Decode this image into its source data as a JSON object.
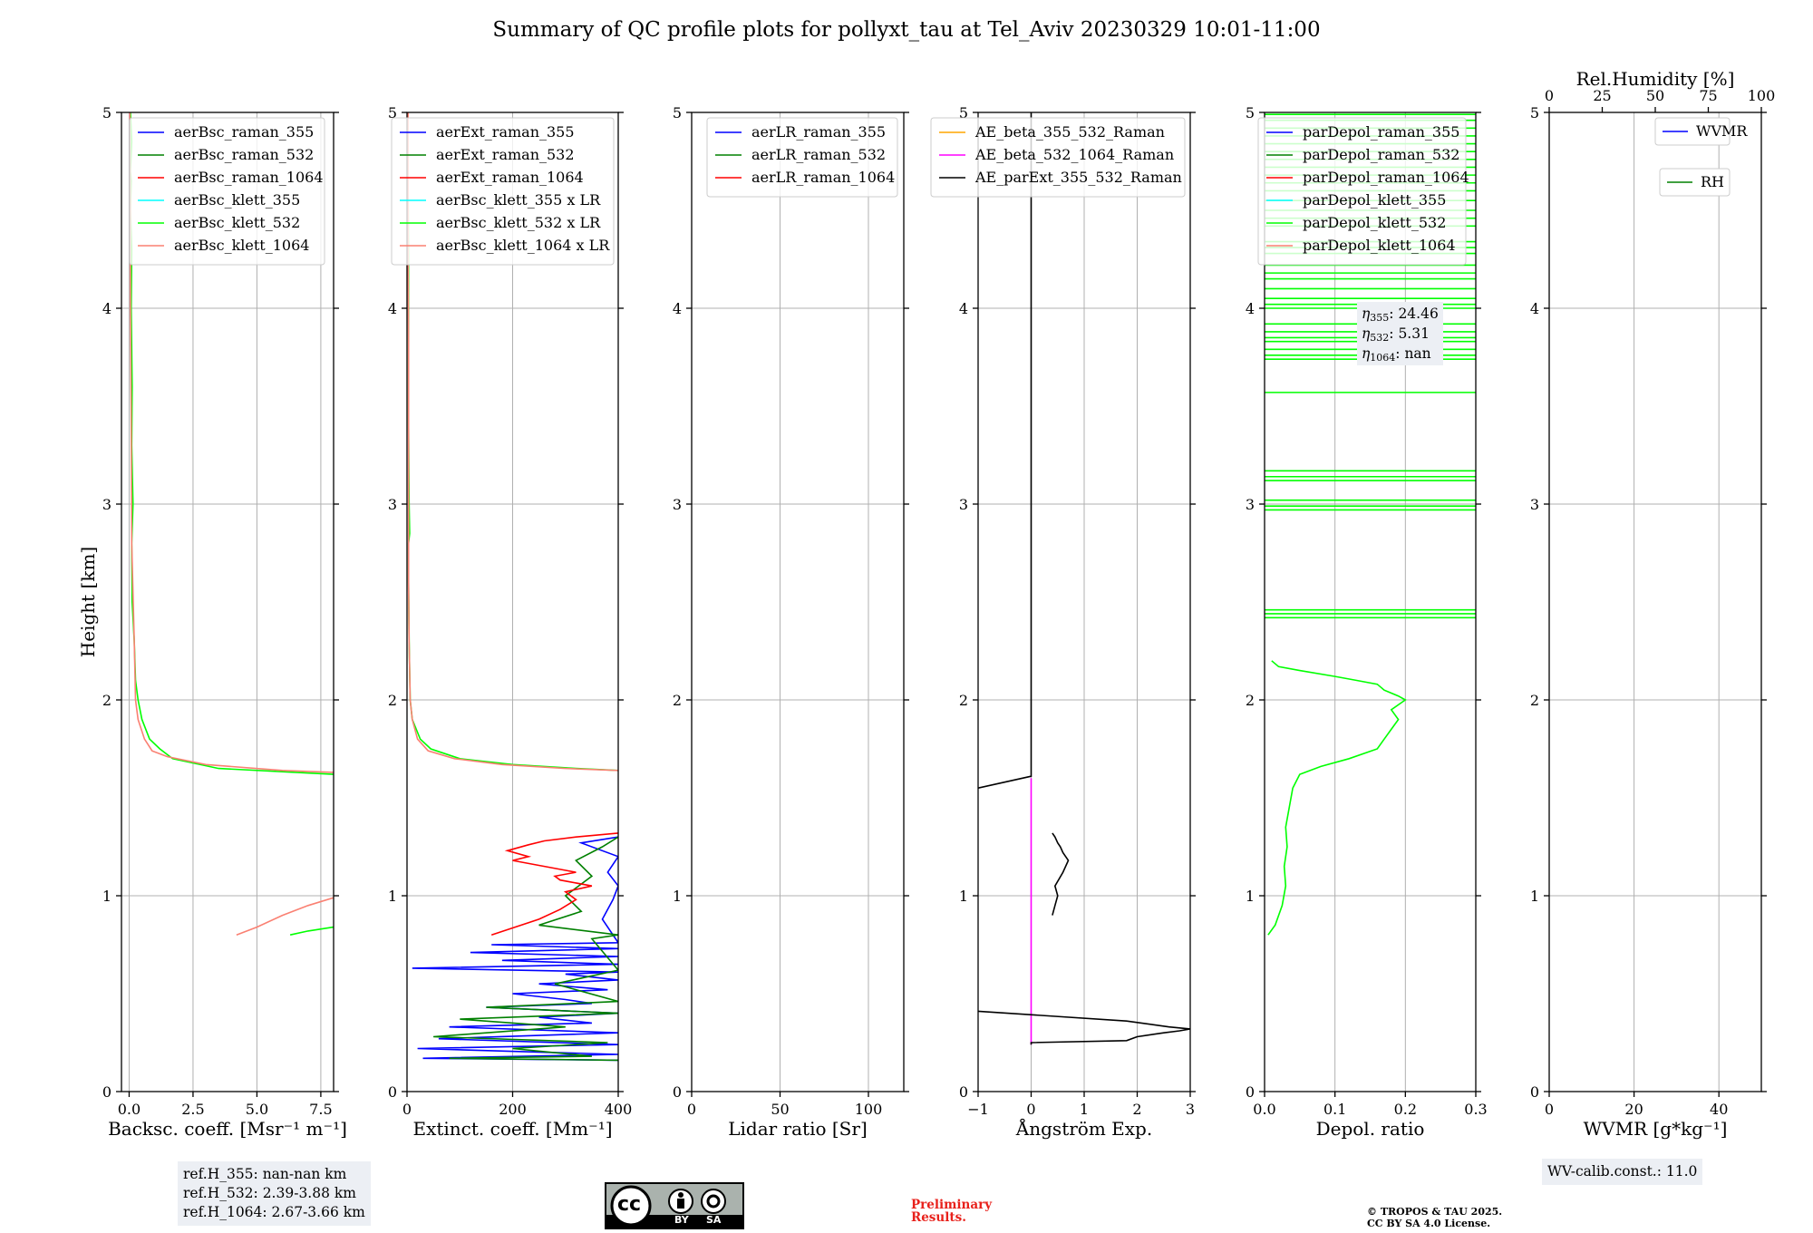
{
  "figure": {
    "title": "Summary of QC profile plots for pollyxt_tau at Tel_Aviv 20230329 10:01-11:00",
    "ref_h": [
      "ref.H_355: nan-nan km",
      "ref.H_532: 2.39-3.88 km",
      "ref.H_1064: 2.67-3.66 km"
    ],
    "wv_calib": "WV-calib.const.: 11.0",
    "license_badge": {
      "cc": "cc",
      "by": "BY",
      "sa": "SA"
    },
    "preliminary": [
      "Preliminary",
      "Results."
    ],
    "copyright": [
      "© TROPOS & TAU 2025.",
      "CC BY SA 4.0 License."
    ]
  },
  "colors": {
    "blue": "#0000ff",
    "green": "#008000",
    "red": "#ff0000",
    "cyan": "#00ffff",
    "lime": "#00ff00",
    "salmon": "#fa8072",
    "orange": "#ffa500",
    "magenta": "#ff00ff",
    "black": "#000000",
    "grid": "#b0b0b0",
    "legend_box": "#eceff4"
  },
  "chart_data": [
    {
      "type": "line",
      "id": "backscatter",
      "ylabel": "Height [km]",
      "xlabel": "Backsc. coeff. [Msr⁻¹ m⁻¹]",
      "xlim": [
        -0.3,
        8.0
      ],
      "ylim": [
        0,
        5
      ],
      "xticks": [
        0,
        2.5,
        5.0,
        7.5
      ],
      "xtick_labels": [
        "0.0",
        "2.5",
        "5.0",
        "7.5"
      ],
      "yticks": [
        0,
        1,
        2,
        3,
        4,
        5
      ],
      "ytick_labels": [
        "0",
        "1",
        "2",
        "3",
        "4",
        "5"
      ],
      "legend_placement": "top-right",
      "series": [
        {
          "name": "aerBsc_raman_355",
          "color": "blue",
          "x": [],
          "y": []
        },
        {
          "name": "aerBsc_raman_532",
          "color": "green",
          "x": [],
          "y": []
        },
        {
          "name": "aerBsc_raman_1064",
          "color": "red",
          "x": [],
          "y": []
        },
        {
          "name": "aerBsc_klett_355",
          "color": "cyan",
          "x": [],
          "y": []
        },
        {
          "name": "aerBsc_klett_532",
          "color": "lime",
          "x": [
            6.3,
            7.0,
            8.0,
            null,
            8.0,
            6.5,
            3.5,
            1.7,
            1.2,
            0.8,
            0.5,
            0.35,
            0.25,
            0.2,
            0.12,
            0.1,
            0.15,
            0.1,
            0.12,
            0.08,
            0.1,
            0.05,
            0.08,
            0.05,
            0.1,
            0.05
          ],
          "y": [
            0.8,
            0.82,
            0.84,
            null,
            1.62,
            1.63,
            1.65,
            1.7,
            1.75,
            1.8,
            1.9,
            2.0,
            2.1,
            2.3,
            2.5,
            2.8,
            3.0,
            3.3,
            3.6,
            4.0,
            4.3,
            4.5,
            4.65,
            4.7,
            4.85,
            5.0
          ]
        },
        {
          "name": "aerBsc_klett_1064",
          "color": "salmon",
          "x": [
            4.2,
            5.0,
            6.0,
            7.0,
            8.0,
            null,
            8.0,
            6.0,
            3.0,
            1.5,
            0.9,
            0.6,
            0.35,
            0.25,
            0.2,
            0.1,
            0.08,
            0.05,
            0.05,
            0.03
          ],
          "y": [
            0.8,
            0.84,
            0.9,
            0.95,
            0.99,
            null,
            1.63,
            1.64,
            1.67,
            1.71,
            1.74,
            1.8,
            1.9,
            2.0,
            2.3,
            2.8,
            3.5,
            4.0,
            4.5,
            5.0
          ]
        }
      ]
    },
    {
      "type": "line",
      "id": "extinction",
      "xlabel": "Extinct. coeff. [Mm⁻¹]",
      "xlim": [
        0,
        400
      ],
      "ylim": [
        0,
        5
      ],
      "xticks": [
        0,
        200,
        400
      ],
      "xtick_labels": [
        "0",
        "200",
        "400"
      ],
      "yticks": [
        0,
        1,
        2,
        3,
        4,
        5
      ],
      "ytick_labels": [
        "0",
        "1",
        "2",
        "3",
        "4",
        "5"
      ],
      "legend_placement": "top-right",
      "series": [
        {
          "name": "aerExt_raman_355",
          "color": "blue",
          "x": [
            400,
            30,
            400,
            20,
            400,
            60,
            400,
            80,
            350,
            250,
            400,
            150,
            350,
            300,
            200,
            380,
            250,
            400,
            300,
            400,
            10,
            400,
            180,
            400,
            120,
            400,
            160,
            400,
            370,
            390,
            400,
            380,
            400,
            330,
            400
          ],
          "y": [
            0.16,
            0.17,
            0.19,
            0.22,
            0.24,
            0.27,
            0.3,
            0.33,
            0.35,
            0.38,
            0.4,
            0.43,
            0.45,
            0.47,
            0.5,
            0.52,
            0.55,
            0.57,
            0.6,
            0.61,
            0.63,
            0.65,
            0.67,
            0.69,
            0.71,
            0.73,
            0.75,
            0.76,
            0.88,
            0.98,
            1.05,
            1.12,
            1.2,
            1.27,
            1.3
          ]
        },
        {
          "name": "aerExt_raman_532",
          "color": "green",
          "x": [
            400,
            80,
            350,
            200,
            380,
            50,
            300,
            100,
            400,
            150,
            400,
            280,
            400,
            350,
            400,
            250,
            330,
            300,
            350,
            320,
            370,
            400
          ],
          "y": [
            0.16,
            0.17,
            0.18,
            0.22,
            0.25,
            0.28,
            0.33,
            0.37,
            0.4,
            0.43,
            0.46,
            0.55,
            0.62,
            0.78,
            0.8,
            0.85,
            0.92,
            1.0,
            1.1,
            1.18,
            1.25,
            1.3
          ]
        },
        {
          "name": "aerExt_raman_1064",
          "color": "red",
          "x": [
            160,
            250,
            290,
            320,
            300,
            350,
            290,
            280,
            320,
            260,
            200,
            230,
            190,
            230,
            260,
            320,
            400
          ],
          "y": [
            0.8,
            0.88,
            0.93,
            0.98,
            1.02,
            1.05,
            1.08,
            1.1,
            1.12,
            1.15,
            1.18,
            1.2,
            1.23,
            1.26,
            1.28,
            1.3,
            1.32
          ]
        },
        {
          "name": "aerBsc_klett_355 x LR",
          "color": "cyan",
          "x": [],
          "y": []
        },
        {
          "name": "aerBsc_klett_532 x LR",
          "color": "lime",
          "x": [
            400,
            320,
            200,
            100,
            45,
            25,
            10,
            6,
            4,
            3,
            3,
            5,
            4,
            3,
            3,
            3,
            2,
            2
          ],
          "y": [
            1.64,
            1.65,
            1.67,
            1.7,
            1.75,
            1.8,
            1.9,
            2.0,
            2.3,
            2.6,
            2.8,
            2.85,
            3.0,
            3.4,
            3.8,
            4.2,
            4.6,
            5.0
          ]
        },
        {
          "name": "aerBsc_klett_1064 x LR",
          "color": "salmon",
          "x": [
            400,
            300,
            180,
            90,
            40,
            20,
            10,
            6,
            4,
            3,
            3,
            3,
            2,
            2
          ],
          "y": [
            1.64,
            1.65,
            1.67,
            1.7,
            1.74,
            1.8,
            1.9,
            2.0,
            2.3,
            2.6,
            3.2,
            3.8,
            4.3,
            5.0
          ]
        }
      ]
    },
    {
      "type": "line",
      "id": "lidar_ratio",
      "xlabel": "Lidar ratio [Sr]",
      "xlim": [
        0,
        120
      ],
      "ylim": [
        0,
        5
      ],
      "xticks": [
        0,
        50,
        100
      ],
      "xtick_labels": [
        "0",
        "50",
        "100"
      ],
      "yticks": [
        0,
        1,
        2,
        3,
        4,
        5
      ],
      "ytick_labels": [
        "0",
        "1",
        "2",
        "3",
        "4",
        "5"
      ],
      "legend_placement": "top-right",
      "series": [
        {
          "name": "aerLR_raman_355",
          "color": "blue",
          "x": [],
          "y": []
        },
        {
          "name": "aerLR_raman_532",
          "color": "green",
          "x": [],
          "y": []
        },
        {
          "name": "aerLR_raman_1064",
          "color": "red",
          "x": [],
          "y": []
        }
      ]
    },
    {
      "type": "line",
      "id": "angstrom",
      "xlabel": "Ångström Exp.",
      "xlim": [
        -1,
        3
      ],
      "ylim": [
        0,
        5
      ],
      "xticks": [
        -1,
        0,
        1,
        2,
        3
      ],
      "xtick_labels": [
        "−1",
        "0",
        "1",
        "2",
        "3"
      ],
      "yticks": [
        0,
        1,
        2,
        3,
        4,
        5
      ],
      "ytick_labels": [
        "0",
        "1",
        "2",
        "3",
        "4",
        "5"
      ],
      "legend_placement": "top-right",
      "series": [
        {
          "name": "AE_beta_355_532_Raman",
          "color": "orange",
          "x": [],
          "y": []
        },
        {
          "name": "AE_beta_532_1064_Raman",
          "color": "magenta",
          "x": [
            0,
            0
          ],
          "y": [
            0.24,
            1.6
          ]
        },
        {
          "name": "AE_parExt_355_532_Raman",
          "color": "black",
          "x": [
            0,
            0,
            1.8,
            2.0,
            2.5,
            2.8,
            3.0,
            2.6,
            1.8,
            -1,
            null,
            0.4,
            0.45,
            0.5,
            0.45,
            0.6,
            0.7,
            0.6,
            0.55,
            0.5,
            0.45,
            0.4,
            null,
            -1,
            0,
            0,
            0
          ],
          "y": [
            0.24,
            0.25,
            0.26,
            0.28,
            0.3,
            0.31,
            0.32,
            0.33,
            0.36,
            0.41,
            null,
            0.9,
            0.95,
            1.0,
            1.05,
            1.12,
            1.18,
            1.22,
            1.25,
            1.27,
            1.3,
            1.32,
            null,
            1.55,
            1.61,
            3.0,
            5.0
          ]
        }
      ]
    },
    {
      "type": "line",
      "id": "depol",
      "xlabel": "Depol. ratio",
      "xlim": [
        0,
        0.3
      ],
      "ylim": [
        0,
        5
      ],
      "xticks": [
        0,
        0.1,
        0.2,
        0.3
      ],
      "xtick_labels": [
        "0.0",
        "0.1",
        "0.2",
        "0.3"
      ],
      "yticks": [
        0,
        1,
        2,
        3,
        4,
        5
      ],
      "ytick_labels": [
        "0",
        "1",
        "2",
        "3",
        "4",
        "5"
      ],
      "legend_placement": "top-right",
      "annotations": [
        "η355: 24.46",
        "η532: 5.31",
        "η1064: nan"
      ],
      "series": [
        {
          "name": "parDepol_raman_355",
          "color": "blue",
          "x": [],
          "y": []
        },
        {
          "name": "parDepol_raman_532",
          "color": "green",
          "x": [],
          "y": []
        },
        {
          "name": "parDepol_raman_1064",
          "color": "red",
          "x": [],
          "y": []
        },
        {
          "name": "parDepol_klett_355",
          "color": "cyan",
          "x": [],
          "y": []
        },
        {
          "name": "parDepol_klett_532",
          "color": "lime",
          "x": [
            0.005,
            0.015,
            0.025,
            0.03,
            0.028,
            0.032,
            0.03,
            0.035,
            0.04,
            0.05,
            0.08,
            0.12,
            0.16,
            0.17,
            0.18,
            0.19,
            0.18,
            0.2,
            0.19,
            0.17,
            0.16,
            0.13,
            0.1,
            0.05,
            0.02,
            0.01
          ],
          "y": [
            0.8,
            0.85,
            0.95,
            1.05,
            1.15,
            1.25,
            1.35,
            1.45,
            1.55,
            1.62,
            1.66,
            1.7,
            1.75,
            1.8,
            1.85,
            1.9,
            1.95,
            2.0,
            2.02,
            2.05,
            2.08,
            2.1,
            2.12,
            2.15,
            2.17,
            2.2
          ]
        },
        {
          "name": "parDepol_klett_1064",
          "color": "salmon",
          "x": [],
          "y": []
        }
      ],
      "hlines_lime": [
        2.42,
        2.44,
        2.46,
        2.97,
        2.99,
        3.02,
        3.12,
        3.14,
        3.17,
        3.57,
        3.74,
        3.76,
        3.79,
        3.83,
        3.85,
        3.88,
        3.92,
        4.0,
        4.02,
        4.05,
        4.1,
        4.15,
        4.18,
        4.22,
        4.28,
        4.31,
        4.34,
        4.42,
        4.46,
        4.5,
        4.55,
        4.6,
        4.64,
        4.68,
        4.72,
        4.76,
        4.8,
        4.84,
        4.88,
        4.92,
        4.96,
        4.99
      ]
    },
    {
      "type": "line",
      "id": "wvmr",
      "xlabel": "WVMR [g*kg⁻¹]",
      "xlim": [
        0,
        50
      ],
      "ylim": [
        0,
        5
      ],
      "xticks": [
        0,
        20,
        40
      ],
      "xtick_labels": [
        "0",
        "20",
        "40"
      ],
      "yticks": [
        0,
        1,
        2,
        3,
        4,
        5
      ],
      "ytick_labels": [
        "0",
        "1",
        "2",
        "3",
        "4",
        "5"
      ],
      "x2label": "Rel.Humidity [%]",
      "x2lim": [
        0,
        100
      ],
      "x2ticks": [
        0,
        25,
        50,
        75,
        100
      ],
      "x2tick_labels": [
        "0",
        "25",
        "50",
        "75",
        "100"
      ],
      "legend_placement": "top-right",
      "series": [
        {
          "name": "WVMR",
          "color": "blue",
          "x": [],
          "y": []
        },
        {
          "name": "RH",
          "color": "green",
          "x": [],
          "y": []
        }
      ]
    }
  ]
}
